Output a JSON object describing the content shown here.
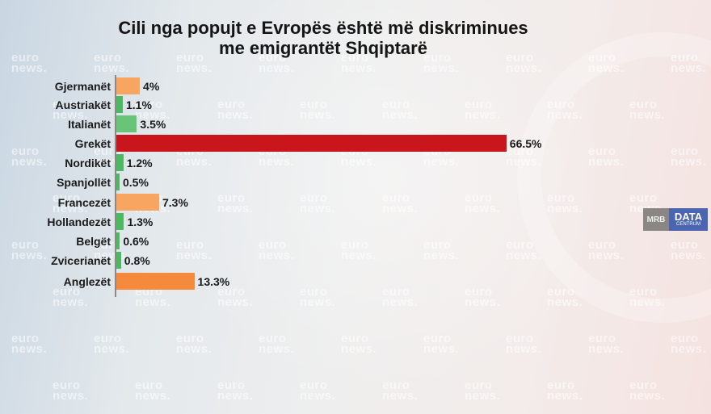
{
  "title_line1": "Cili nga popujt e Evropës është më diskriminues",
  "title_line2": "me emigrantët Shqiptarë",
  "watermark": "euronews.",
  "logo": {
    "left": "MRB",
    "right": "DATA",
    "right_sub": "CENTRUM"
  },
  "colors": {
    "orange": "#f5a05a",
    "green": "#5cc06a",
    "red": "#c8161c",
    "orange_dark": "#f58a3c"
  },
  "rows": [
    {
      "label": "Gjermanët",
      "value": 4,
      "display": "4%",
      "color": "#f7a561"
    },
    {
      "label": "Austriakët",
      "value": 1.1,
      "display": "1.1%",
      "color": "#4cb860"
    },
    {
      "label": "Italianët",
      "value": 3.5,
      "display": "3.5%",
      "color": "#68c477"
    },
    {
      "label": "Grekët",
      "value": 66.5,
      "display": "66.5%",
      "color": "#c8161c"
    },
    {
      "label": "Nordikët",
      "value": 1.2,
      "display": "1.2%",
      "color": "#4cb860"
    },
    {
      "label": "Spanjollët",
      "value": 0.5,
      "display": "0.5%",
      "color": "#4cb860"
    },
    {
      "label": "Francezët",
      "value": 7.3,
      "display": "7.3%",
      "color": "#f7a561"
    },
    {
      "label": "Hollandezët",
      "value": 1.3,
      "display": "1.3%",
      "color": "#4cb860"
    },
    {
      "label": "Belgët",
      "value": 0.6,
      "display": "0.6%",
      "color": "#4cb860"
    },
    {
      "label": "Zvicerianët",
      "value": 0.8,
      "display": "0.8%",
      "color": "#4cb860"
    },
    {
      "label": "Anglezët",
      "value": 13.3,
      "display": "13.3%",
      "color": "#f58a3c"
    }
  ],
  "chart_data": {
    "type": "bar",
    "orientation": "horizontal",
    "title": "Cili nga popujt e Evropës është më diskriminues me emigrantët Shqiptarë",
    "categories": [
      "Gjermanët",
      "Austriakët",
      "Italianët",
      "Grekët",
      "Nordikët",
      "Spanjollët",
      "Francezët",
      "Hollandezët",
      "Belgët",
      "Zvicerianët",
      "Anglezët"
    ],
    "values": [
      4,
      1.1,
      3.5,
      66.5,
      1.2,
      0.5,
      7.3,
      1.3,
      0.6,
      0.8,
      13.3
    ],
    "unit": "%",
    "xlabel": "",
    "ylabel": "",
    "grid": false,
    "legend": null
  }
}
